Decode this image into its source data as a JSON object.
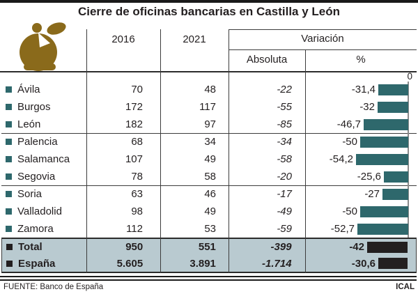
{
  "title": "Cierre de oficinas bancarias en Castilla y León",
  "header": {
    "col_2016": "2016",
    "col_2021": "2021",
    "variacion": "Variación",
    "absoluta": "Absoluta",
    "pct": "%",
    "axis_zero": "0"
  },
  "footer": {
    "source": "FUENTE: Banco de España",
    "credit": "ICAL"
  },
  "icons": {
    "logo": "piggy-bank-icon"
  },
  "colors": {
    "bar_teal": "#2e686c",
    "bar_dark": "#231f20",
    "bullet_teal": "#2e686c",
    "bullet_dark": "#231f20",
    "shaded_bg": "#b9cad0",
    "gold": "#8a6a1b",
    "text": "#231f20",
    "top_rule": "#1a1a1a"
  },
  "table": {
    "provinces": [
      {
        "name": "Ávila",
        "v2016": "70",
        "v2021": "48",
        "abs": "-22",
        "pct": "-31,4",
        "pct_value": -31.4
      },
      {
        "name": "Burgos",
        "v2016": "172",
        "v2021": "117",
        "abs": "-55",
        "pct": "-32",
        "pct_value": -32
      },
      {
        "name": "León",
        "v2016": "182",
        "v2021": "97",
        "abs": "-85",
        "pct": "-46,7",
        "pct_value": -46.7
      },
      {
        "name": "Palencia",
        "v2016": "68",
        "v2021": "34",
        "abs": "-34",
        "pct": "-50",
        "pct_value": -50
      },
      {
        "name": "Salamanca",
        "v2016": "107",
        "v2021": "49",
        "abs": "-58",
        "pct": "-54,2",
        "pct_value": -54.2
      },
      {
        "name": "Segovia",
        "v2016": "78",
        "v2021": "58",
        "abs": "-20",
        "pct": "-25,6",
        "pct_value": -25.6
      },
      {
        "name": "Soria",
        "v2016": "63",
        "v2021": "46",
        "abs": "-17",
        "pct": "-27",
        "pct_value": -27
      },
      {
        "name": "Valladolid",
        "v2016": "98",
        "v2021": "49",
        "abs": "-49",
        "pct": "-50",
        "pct_value": -50
      },
      {
        "name": "Zamora",
        "v2016": "112",
        "v2021": "53",
        "abs": "-59",
        "pct": "-52,7",
        "pct_value": -52.7
      }
    ],
    "totals": [
      {
        "name": "Total",
        "v2016": "950",
        "v2021": "551",
        "abs": "-399",
        "pct": "-42",
        "pct_value": -42
      },
      {
        "name": "España",
        "v2016": "5.605",
        "v2021": "3.891",
        "abs": "-1.714",
        "pct": "-30,6",
        "pct_value": -30.6
      }
    ]
  },
  "chart_data": {
    "type": "bar",
    "orientation": "horizontal",
    "title": "Cierre de oficinas bancarias en Castilla y León",
    "categories": [
      "Ávila",
      "Burgos",
      "León",
      "Palencia",
      "Salamanca",
      "Segovia",
      "Soria",
      "Valladolid",
      "Zamora",
      "Total",
      "España"
    ],
    "series": [
      {
        "name": "2016",
        "values": [
          70,
          172,
          182,
          68,
          107,
          78,
          63,
          98,
          112,
          950,
          5605
        ]
      },
      {
        "name": "2021",
        "values": [
          48,
          117,
          97,
          34,
          49,
          58,
          46,
          49,
          53,
          551,
          3891
        ]
      },
      {
        "name": "Variación Absoluta",
        "values": [
          -22,
          -55,
          -85,
          -34,
          -58,
          -20,
          -17,
          -49,
          -59,
          -399,
          -1714
        ]
      },
      {
        "name": "Variación %",
        "values": [
          -31.4,
          -32,
          -46.7,
          -50,
          -54.2,
          -25.6,
          -27,
          -50,
          -52.7,
          -42,
          -30.6
        ]
      }
    ],
    "bars_plotted_series": "Variación %",
    "xlim": [
      -60,
      0
    ],
    "axis_tick_labels": [
      "0"
    ],
    "legend": "none",
    "grid": "off",
    "source": "FUENTE: Banco de España",
    "credit": "ICAL"
  }
}
